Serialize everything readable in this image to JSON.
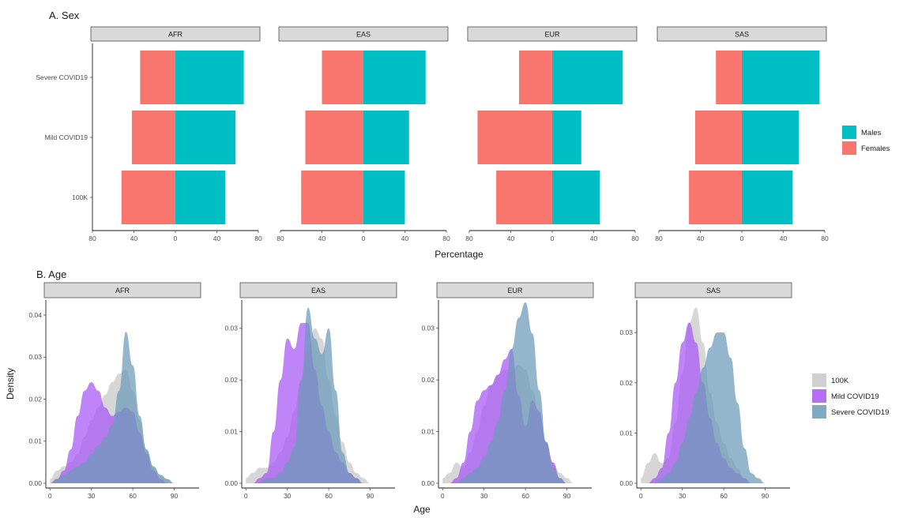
{
  "chart_data": [
    {
      "type": "bar",
      "panel_title": "A. Sex",
      "xlabel": "Percentage",
      "xlim": [
        -80,
        80
      ],
      "xticks": [
        -80,
        -40,
        0,
        40,
        80
      ],
      "xtick_labels": [
        "80",
        "40",
        "0",
        "40",
        "80"
      ],
      "categories": [
        "Severe COVID19",
        "Mild COVID19",
        "100K"
      ],
      "legend": {
        "position": "right",
        "entries": [
          {
            "name": "Males",
            "color": "#00bfc4"
          },
          {
            "name": "Females",
            "color": "#f8766d"
          }
        ]
      },
      "facets": [
        {
          "label": "AFR",
          "series": [
            {
              "name": "Males",
              "values": [
                66,
                58,
                48
              ]
            },
            {
              "name": "Females",
              "values": [
                34,
                42,
                52
              ]
            }
          ]
        },
        {
          "label": "EAS",
          "series": [
            {
              "name": "Males",
              "values": [
                60,
                44,
                40
              ]
            },
            {
              "name": "Females",
              "values": [
                40,
                56,
                60
              ]
            }
          ]
        },
        {
          "label": "EUR",
          "series": [
            {
              "name": "Males",
              "values": [
                68,
                28,
                46
              ]
            },
            {
              "name": "Females",
              "values": [
                32,
                72,
                54
              ]
            }
          ]
        },
        {
          "label": "SAS",
          "series": [
            {
              "name": "Males",
              "values": [
                75,
                55,
                49
              ]
            },
            {
              "name": "Females",
              "values": [
                25,
                45,
                51
              ]
            }
          ]
        }
      ]
    },
    {
      "type": "area",
      "panel_title": "B. Age",
      "xlabel": "Age",
      "ylabel": "Density",
      "xticks": [
        0,
        30,
        60,
        90
      ],
      "xlim": [
        -3,
        108
      ],
      "legend": {
        "position": "right",
        "entries": [
          {
            "name": "100K",
            "color": "#c8c8c8"
          },
          {
            "name": "Mild COVID19",
            "color": "#a855f7"
          },
          {
            "name": "Severe COVID19",
            "color": "#6b9ab8"
          }
        ]
      },
      "x": [
        0,
        5,
        10,
        15,
        20,
        25,
        30,
        35,
        40,
        45,
        50,
        55,
        60,
        65,
        70,
        75,
        80,
        85,
        90,
        95,
        100
      ],
      "facets": [
        {
          "label": "AFR",
          "ylim": [
            0,
            0.043
          ],
          "yticks": [
            0,
            0.01,
            0.02,
            0.03,
            0.04
          ],
          "ytick_labels": [
            "0.00",
            "0.01",
            "0.02",
            "0.03",
            "0.04"
          ],
          "series": [
            {
              "name": "100K",
              "values": [
                0.001,
                0.003,
                0.004,
                0.005,
                0.007,
                0.011,
                0.015,
                0.018,
                0.021,
                0.024,
                0.026,
                0.027,
                0.022,
                0.015,
                0.008,
                0.004,
                0.002,
                0.001,
                0,
                0,
                0
              ]
            },
            {
              "name": "Mild COVID19",
              "values": [
                0,
                0.001,
                0.003,
                0.008,
                0.016,
                0.022,
                0.024,
                0.022,
                0.018,
                0.016,
                0.017,
                0.018,
                0.017,
                0.012,
                0.007,
                0.003,
                0.001,
                0,
                0,
                0,
                0
              ]
            },
            {
              "name": "Severe COVID19",
              "values": [
                0,
                0.001,
                0.002,
                0.003,
                0.004,
                0.005,
                0.007,
                0.009,
                0.011,
                0.014,
                0.022,
                0.036,
                0.028,
                0.016,
                0.008,
                0.004,
                0.002,
                0.001,
                0,
                0,
                0
              ]
            }
          ]
        },
        {
          "label": "EAS",
          "ylim": [
            0,
            0.035
          ],
          "yticks": [
            0,
            0.01,
            0.02,
            0.03
          ],
          "ytick_labels": [
            "0.00",
            "0.01",
            "0.02",
            "0.03"
          ],
          "series": [
            {
              "name": "100K",
              "values": [
                0.001,
                0.002,
                0.003,
                0.003,
                0.004,
                0.006,
                0.009,
                0.014,
                0.02,
                0.026,
                0.03,
                0.028,
                0.02,
                0.013,
                0.008,
                0.004,
                0.002,
                0.001,
                0,
                0,
                0
              ]
            },
            {
              "name": "Mild COVID19",
              "values": [
                0,
                0,
                0.001,
                0.002,
                0.01,
                0.02,
                0.028,
                0.026,
                0.031,
                0.031,
                0.022,
                0.015,
                0.01,
                0.006,
                0.004,
                0.002,
                0.001,
                0,
                0,
                0,
                0
              ]
            },
            {
              "name": "Severe COVID19",
              "values": [
                0,
                0,
                0,
                0.001,
                0.001,
                0.002,
                0.004,
                0.007,
                0.02,
                0.034,
                0.028,
                0.025,
                0.03,
                0.018,
                0.006,
                0.002,
                0.001,
                0,
                0,
                0,
                0
              ]
            }
          ]
        },
        {
          "label": "EUR",
          "ylim": [
            0,
            0.035
          ],
          "yticks": [
            0,
            0.01,
            0.02,
            0.03
          ],
          "ytick_labels": [
            "0.00",
            "0.01",
            "0.02",
            "0.03"
          ],
          "series": [
            {
              "name": "100K",
              "values": [
                0.001,
                0.002,
                0.004,
                0.003,
                0.006,
                0.01,
                0.015,
                0.019,
                0.021,
                0.022,
                0.022,
                0.023,
                0.022,
                0.018,
                0.013,
                0.008,
                0.004,
                0.002,
                0.001,
                0,
                0
              ]
            },
            {
              "name": "Mild COVID19",
              "values": [
                0,
                0,
                0.001,
                0.004,
                0.01,
                0.016,
                0.018,
                0.019,
                0.021,
                0.024,
                0.026,
                0.017,
                0.011,
                0.016,
                0.014,
                0.008,
                0.004,
                0.001,
                0,
                0,
                0
              ]
            },
            {
              "name": "Severe COVID19",
              "values": [
                0,
                0,
                0,
                0.001,
                0.002,
                0.003,
                0.005,
                0.008,
                0.012,
                0.018,
                0.026,
                0.032,
                0.035,
                0.029,
                0.018,
                0.008,
                0.003,
                0.001,
                0,
                0,
                0
              ]
            }
          ]
        },
        {
          "label": "SAS",
          "ylim": [
            0,
            0.036
          ],
          "yticks": [
            0,
            0.01,
            0.02,
            0.03
          ],
          "ytick_labels": [
            "0.00",
            "0.01",
            "0.02",
            "0.03"
          ],
          "series": [
            {
              "name": "100K",
              "values": [
                0.001,
                0.004,
                0.006,
                0.004,
                0.005,
                0.012,
                0.022,
                0.032,
                0.035,
                0.028,
                0.018,
                0.012,
                0.008,
                0.005,
                0.003,
                0.001,
                0,
                0,
                0,
                0,
                0
              ]
            },
            {
              "name": "Mild COVID19",
              "values": [
                0,
                0,
                0.001,
                0.003,
                0.01,
                0.02,
                0.028,
                0.032,
                0.028,
                0.02,
                0.013,
                0.008,
                0.005,
                0.003,
                0.002,
                0.001,
                0,
                0,
                0,
                0,
                0
              ]
            },
            {
              "name": "Severe COVID19",
              "values": [
                0,
                0,
                0,
                0.001,
                0.002,
                0.004,
                0.008,
                0.013,
                0.018,
                0.023,
                0.027,
                0.03,
                0.03,
                0.025,
                0.016,
                0.007,
                0.002,
                0.001,
                0,
                0,
                0
              ]
            }
          ]
        }
      ]
    }
  ]
}
